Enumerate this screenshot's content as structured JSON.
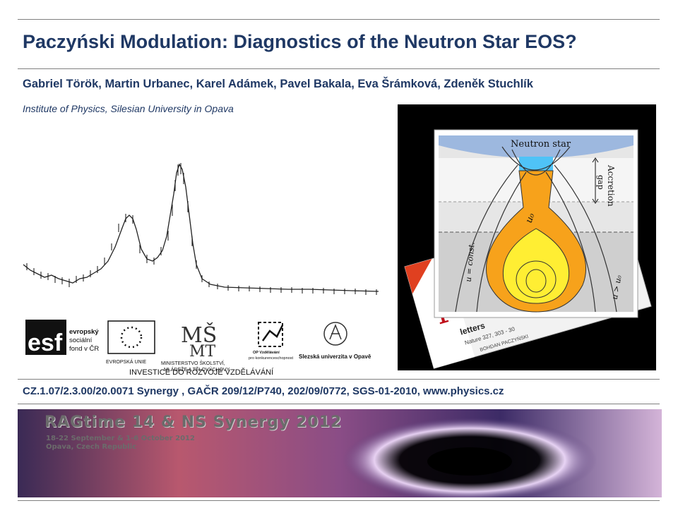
{
  "header": {
    "title": "Paczyński Modulation:  Diagnostics of the Neutron Star EOS?",
    "authors": "Gabriel Török, Martin Urbanec, Karel Adámek, Pavel Bakala, Eva Šrámková, Zdeněk Stuchlík",
    "institute": "Institute  of   Physics, Silesian University in Opava"
  },
  "logos": {
    "esf_lines": [
      "evropský",
      "sociální",
      "fond v ČR"
    ],
    "eu_label": "EVROPSKÁ UNIE",
    "msmt_lines": [
      "MINISTERSTVO ŠKOLSTVÍ,",
      "MLÁDEŽE A TĚLOVÝCHOVY"
    ],
    "op_lines": [
      "OP Vzdělávání",
      "pro konkurenceschopnost"
    ],
    "university": "Slezská univerzita v Opavě",
    "tagline": "INVESTICE DO ROZVOJE VZDĚLÁVÁNÍ"
  },
  "figure": {
    "neutron_star_label": "Neutron star",
    "accretion_label": "Accretion",
    "gap_label": "gap",
    "u_label": "u₀",
    "u_const_label": "u = const.",
    "u_gt_label": "u > u₀",
    "paper_letter": "r",
    "paper_label": "letters",
    "paper_ref": "Nature 327, 303 - 30",
    "paper_author": "BOHDAN PACZYŃSKI"
  },
  "grant": "CZ.1.07/2.3.00/20.0071  Synergy  , GAČR 209/12/P740,  202/09/0772,  SGS-01-2010,  www.physics.cz",
  "banner": {
    "title": "RAGtime 14 & NS Synergy 2012",
    "dates": "18-22 September & 1-6 October 2012",
    "place": "Opava, Czech Republic"
  },
  "colors": {
    "title": "#1f3864",
    "rule": "#7f7f7f",
    "disk_orange": "#f7a21b",
    "disk_yellow": "#ffee33"
  }
}
